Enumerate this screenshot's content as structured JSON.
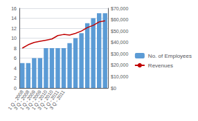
{
  "chart_data": {
    "type": "bar",
    "categories": [
      "1 Q - 2008",
      "3 Q - 2008",
      "1 Q - 2009",
      "3 Q - 2009",
      "1 Q - 2010",
      "3 Q - 2010",
      "1 Q - 2011",
      "3 Q - 2011",
      null,
      null,
      null,
      null,
      null,
      null,
      null
    ],
    "series": [
      {
        "name": "No. of Employees",
        "type": "bar",
        "color": "#5B9BD5",
        "values": [
          5,
          5,
          6,
          6,
          8,
          8,
          8,
          8,
          9,
          10,
          11,
          13,
          14,
          15,
          15
        ]
      },
      {
        "name": "Revenues",
        "type": "line",
        "color": "#C00000",
        "axis": "y2",
        "values": [
          35000,
          38000,
          40000,
          41000,
          42000,
          43000,
          46000,
          47000,
          46500,
          48000,
          50000,
          53000,
          55000,
          58000,
          59000
        ]
      }
    ],
    "ylim": [
      0,
      16
    ],
    "yticks": [
      0,
      2,
      4,
      6,
      8,
      10,
      12,
      14,
      16
    ],
    "y2lim": [
      0,
      70000
    ],
    "y2ticks": [
      {
        "value": 0,
        "label": "$0"
      },
      {
        "value": 10000,
        "label": "$10,000"
      },
      {
        "value": 20000,
        "label": "$20,000"
      },
      {
        "value": 30000,
        "label": "$30,000"
      },
      {
        "value": 40000,
        "label": "$40,000"
      },
      {
        "value": 50000,
        "label": "$50,000"
      },
      {
        "value": 60000,
        "label": "$60,000"
      },
      {
        "value": 70000,
        "label": "$70,000"
      }
    ],
    "grid": true,
    "legend": "right"
  }
}
